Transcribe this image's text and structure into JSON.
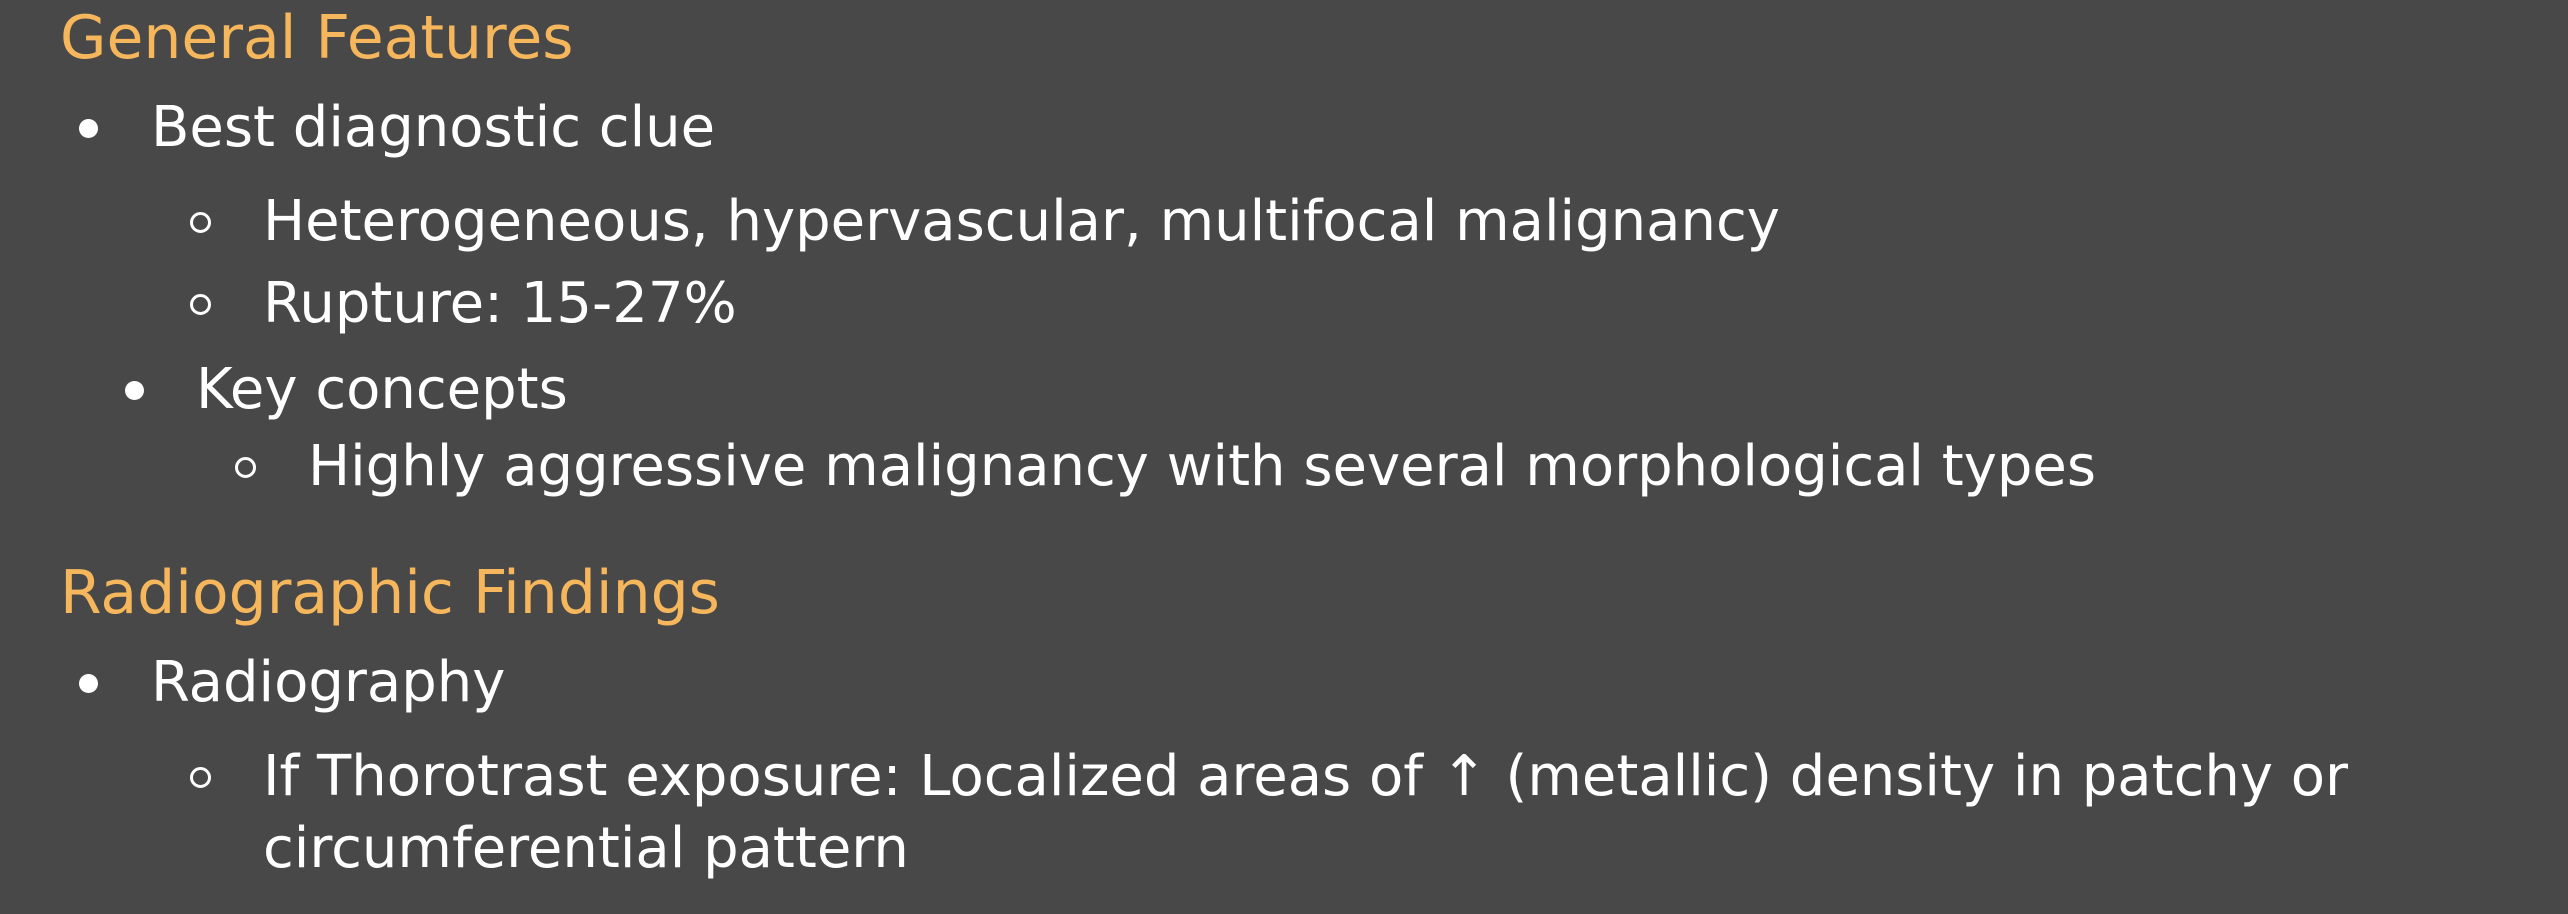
{
  "sections": [
    {
      "heading": "General Features",
      "items": [
        {
          "text": "Best diagnostic clue"
        },
        {
          "text": "Heterogeneous, hypervascular, multifocal malignancy"
        },
        {
          "text": "Rupture: 15-27%"
        },
        {
          "text": "Key concepts"
        },
        {
          "text": "Highly aggressive malignancy with several morphological types"
        }
      ]
    },
    {
      "heading": "Radiographic Findings",
      "items": [
        {
          "text": "Radiography"
        },
        {
          "line1": "If Thorotrast exposure: Localized areas of ↑ (metallic) density in patchy or",
          "line2": "circumferential pattern"
        }
      ]
    }
  ],
  "colors": {
    "background": "#484848",
    "heading": "#f5b65c",
    "text": "#ffffff"
  }
}
